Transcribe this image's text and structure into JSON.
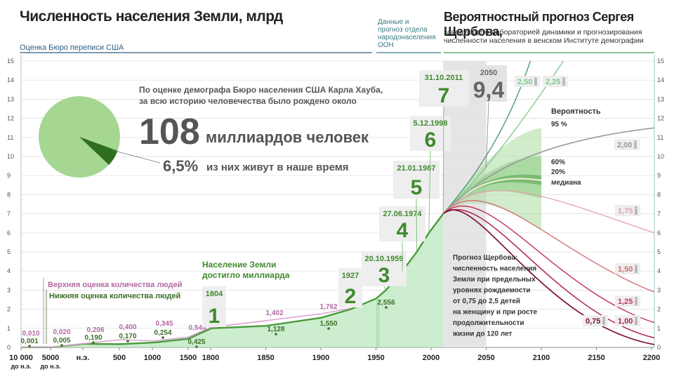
{
  "header": {
    "title": "Численность населения Земли, млрд",
    "bureau_label": "Оценка Бюро переписи США",
    "un_label": "Данные и прогноз отдела народонаселения ООН",
    "scherbov_title": "Вероятностный прогноз Сергея Щербова,",
    "scherbov_subtitle": "заведующего лабораторией динамики и прогнозирования численности населения в венском Институте демографии"
  },
  "info": {
    "line1": "По оценке демографа Бюро населения США Карла Хауба,",
    "line2": "за всю историю человечества было рождено около",
    "big_number": "108",
    "big_text": "миллиардов человек",
    "pct": "6,5%",
    "pct_text": "из них живут в наше время",
    "pie_share": 0.065
  },
  "legend": {
    "upper": "Верхняя оценка количества людей",
    "lower": "Нижняя оценка количества людей",
    "reached": "Население Земли достигло миллиарда"
  },
  "milestones": [
    {
      "date": "1804",
      "number": "1"
    },
    {
      "date": "1927",
      "number": "2"
    },
    {
      "date": "20.10.1959",
      "number": "3"
    },
    {
      "date": "27.06.1974",
      "number": "4"
    },
    {
      "date": "21.01.1987",
      "number": "5"
    },
    {
      "date": "5.12.1998",
      "number": "6"
    },
    {
      "date": "31.10.2011",
      "number": "7"
    },
    {
      "date": "2050",
      "number": "9,4"
    }
  ],
  "scherbov_note": [
    "Прогноз Щербова:",
    "численность населения",
    "Земли при предельных",
    "уровнях рождаемости",
    "от 0,75 до 2,5 детей",
    "на женщину и при росте",
    "продолжительности",
    "жизни до 120 лет"
  ],
  "prob_labels": {
    "title": "Вероятность",
    "p95": "95 %",
    "p60": "60%",
    "p20": "20%",
    "median": "медиана"
  },
  "colors": {
    "green": "#3f8a2e",
    "light_green": "#aee3ae",
    "gray_band": "#d9d9d9"
  },
  "chart_data": {
    "type": "area",
    "ylim": [
      0,
      15
    ],
    "y_ticks": [
      "0",
      "1",
      "2",
      "3",
      "4",
      "5",
      "6",
      "7",
      "8",
      "9",
      "10",
      "11",
      "12",
      "13",
      "14",
      "15"
    ],
    "x_ticks": [
      {
        "label": "10 000",
        "sub": "до н.э."
      },
      {
        "label": "5000",
        "sub": "до н.э."
      },
      {
        "label": "н.э.",
        "sub": ""
      },
      {
        "label": "500",
        "sub": ""
      },
      {
        "label": "1000",
        "sub": ""
      },
      {
        "label": "1500",
        "sub": ""
      },
      {
        "label": "1800",
        "sub": ""
      },
      {
        "label": "1850",
        "sub": ""
      },
      {
        "label": "1900",
        "sub": ""
      },
      {
        "label": "1950",
        "sub": ""
      },
      {
        "label": "2000",
        "sub": ""
      },
      {
        "label": "2050",
        "sub": ""
      },
      {
        "label": "2100",
        "sub": ""
      },
      {
        "label": "2150",
        "sub": ""
      },
      {
        "label": "2200",
        "sub": ""
      }
    ],
    "lower_estimates": [
      "0,001",
      "0,005",
      "0,190",
      "0,170",
      "0,254",
      "0,425",
      "1,128",
      "1,550",
      "2,556"
    ],
    "upper_estimates": [
      "0,010",
      "0,020",
      "0,206",
      "0,400",
      "0,345",
      "0,540",
      "1,402",
      "1,762"
    ],
    "scenarios": [
      {
        "name": "2,50",
        "value": 2.5
      },
      {
        "name": "2,25",
        "value": 2.25
      },
      {
        "name": "2,00",
        "value": 2.0
      },
      {
        "name": "1,75",
        "value": 1.75
      },
      {
        "name": "1,50",
        "value": 1.5
      },
      {
        "name": "1,25",
        "value": 1.25
      },
      {
        "name": "1,00",
        "value": 1.0
      },
      {
        "name": "0,75",
        "value": 0.75
      }
    ]
  }
}
